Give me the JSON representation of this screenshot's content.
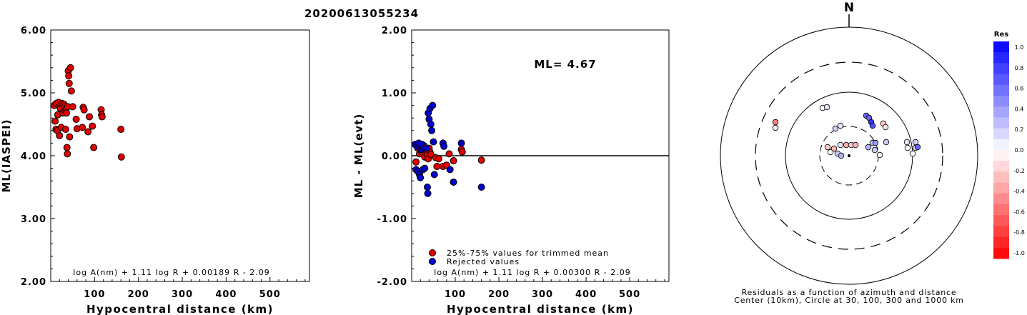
{
  "title": "20200613055234",
  "chart_data": [
    {
      "type": "scatter",
      "xlabel": "Hypocentral distance (km)",
      "ylabel": "ML(IASPEI)",
      "xlim": [
        0,
        590
      ],
      "ylim": [
        2.0,
        6.0
      ],
      "x_ticks": [
        "100",
        "200",
        "300",
        "400",
        "500"
      ],
      "y_ticks": [
        "2.00",
        "3.00",
        "4.00",
        "5.00",
        "6.00"
      ],
      "formula": "log A(nm) + 1.11 log R + 0.00189 R - 2.09",
      "series": [
        {
          "color": "#e00000",
          "points": [
            [
              8,
              4.8
            ],
            [
              10,
              4.55
            ],
            [
              12,
              4.42
            ],
            [
              12,
              4.83
            ],
            [
              15,
              4.4
            ],
            [
              16,
              4.65
            ],
            [
              18,
              4.85
            ],
            [
              20,
              4.32
            ],
            [
              22,
              4.75
            ],
            [
              24,
              4.45
            ],
            [
              26,
              4.83
            ],
            [
              28,
              4.68
            ],
            [
              30,
              4.82
            ],
            [
              32,
              4.78
            ],
            [
              33,
              4.72
            ],
            [
              34,
              4.42
            ],
            [
              35,
              4.75
            ],
            [
              36,
              4.68
            ],
            [
              37,
              4.13
            ],
            [
              38,
              4.03
            ],
            [
              39,
              4.78
            ],
            [
              40,
              5.35
            ],
            [
              41,
              5.27
            ],
            [
              42,
              5.15
            ],
            [
              43,
              4.3
            ],
            [
              45,
              5.4
            ],
            [
              47,
              5.03
            ],
            [
              50,
              4.78
            ],
            [
              58,
              4.58
            ],
            [
              60,
              4.43
            ],
            [
              72,
              4.45
            ],
            [
              74,
              4.77
            ],
            [
              76,
              4.73
            ],
            [
              85,
              4.38
            ],
            [
              88,
              4.62
            ],
            [
              95,
              4.47
            ],
            [
              98,
              4.13
            ],
            [
              115,
              4.73
            ],
            [
              116,
              4.65
            ],
            [
              117,
              4.62
            ],
            [
              160,
              4.42
            ],
            [
              161,
              3.98
            ]
          ]
        }
      ]
    },
    {
      "type": "scatter",
      "xlabel": "Hypocentral distance (km)",
      "ylabel": "ML - ML(evt)",
      "xlim": [
        0,
        590
      ],
      "ylim": [
        -2.0,
        2.0
      ],
      "x_ticks": [
        "100",
        "200",
        "300",
        "400",
        "500"
      ],
      "y_ticks": [
        "-2.00",
        "-1.00",
        "0.00",
        "1.00",
        "2.00"
      ],
      "annotation": "ML= 4.67",
      "formula": "log A(nm) + 1.11 log R + 0.00300 R - 2.09",
      "legend": [
        "25%-75% values for trimmed mean",
        "Rejected values"
      ],
      "series": [
        {
          "name": "25%-75% values for trimmed mean",
          "color": "#e00000",
          "points": [
            [
              10,
              -0.1
            ],
            [
              14,
              0.12
            ],
            [
              18,
              0.03
            ],
            [
              20,
              0.17
            ],
            [
              22,
              0.08
            ],
            [
              24,
              0.15
            ],
            [
              26,
              0.05
            ],
            [
              28,
              0.16
            ],
            [
              30,
              -0.02
            ],
            [
              32,
              0.1
            ],
            [
              34,
              0.08
            ],
            [
              36,
              0.02
            ],
            [
              38,
              -0.05
            ],
            [
              40,
              0.12
            ],
            [
              42,
              0.06
            ],
            [
              44,
              0.02
            ],
            [
              55,
              -0.03
            ],
            [
              58,
              -0.17
            ],
            [
              62,
              -0.05
            ],
            [
              72,
              -0.17
            ],
            [
              80,
              -0.15
            ],
            [
              86,
              0.03
            ],
            [
              96,
              -0.08
            ],
            [
              114,
              0.1
            ],
            [
              116,
              0.06
            ],
            [
              160,
              -0.07
            ]
          ]
        },
        {
          "name": "Rejected values",
          "color": "#0000cc",
          "points": [
            [
              8,
              0.18
            ],
            [
              10,
              -0.22
            ],
            [
              12,
              0.15
            ],
            [
              14,
              -0.25
            ],
            [
              16,
              0.2
            ],
            [
              18,
              -0.3
            ],
            [
              20,
              -0.35
            ],
            [
              22,
              0.1
            ],
            [
              24,
              0.18
            ],
            [
              26,
              -0.22
            ],
            [
              28,
              0.12
            ],
            [
              30,
              -0.2
            ],
            [
              34,
              0.12
            ],
            [
              36,
              -0.5
            ],
            [
              37,
              -0.6
            ],
            [
              38,
              0.68
            ],
            [
              40,
              0.58
            ],
            [
              42,
              0.75
            ],
            [
              44,
              0.5
            ],
            [
              46,
              0.4
            ],
            [
              48,
              0.8
            ],
            [
              50,
              0.22
            ],
            [
              52,
              -0.3
            ],
            [
              72,
              0.2
            ],
            [
              74,
              0.15
            ],
            [
              88,
              -0.22
            ],
            [
              96,
              -0.42
            ],
            [
              114,
              0.2
            ],
            [
              160,
              -0.5
            ]
          ]
        }
      ]
    },
    {
      "type": "polar-residuals",
      "north_label": "N",
      "legend_title": "Res",
      "colorbar_ticks": [
        "1.0",
        "0.8",
        "0.6",
        "0.4",
        "0.2",
        "0.0",
        "-0.2",
        "-0.4",
        "-0.6",
        "-0.8",
        "-1.0"
      ],
      "caption_line1": "Residuals as a function of azimuth and distance",
      "caption_line2": "Center (10km), Circle at 30, 100, 300 and 1000 km",
      "stations": [
        {
          "dx": -103,
          "dy": -47,
          "res": -0.5
        },
        {
          "dx": -103,
          "dy": -39,
          "res": -0.1
        },
        {
          "dx": -37,
          "dy": -67,
          "res": 0.0
        },
        {
          "dx": -31,
          "dy": -68,
          "res": 0.1
        },
        {
          "dx": -19,
          "dy": -38,
          "res": 0.2
        },
        {
          "dx": -12,
          "dy": -42,
          "res": 0.1
        },
        {
          "dx": -30,
          "dy": -12,
          "res": -0.2
        },
        {
          "dx": -26,
          "dy": -5,
          "res": 0.0
        },
        {
          "dx": -21,
          "dy": -10,
          "res": -0.3
        },
        {
          "dx": -16,
          "dy": -3,
          "res": 0.2
        },
        {
          "dx": -12,
          "dy": -15,
          "res": 0.1
        },
        {
          "dx": -4,
          "dy": -15,
          "res": -0.3
        },
        {
          "dx": 3,
          "dy": -15,
          "res": -0.2
        },
        {
          "dx": 9,
          "dy": -15,
          "res": -0.3
        },
        {
          "dx": -11,
          "dy": 0,
          "res": 0.3
        },
        {
          "dx": 24,
          "dy": -56,
          "res": 0.6
        },
        {
          "dx": 28,
          "dy": -53,
          "res": 0.6
        },
        {
          "dx": 31,
          "dy": -47,
          "res": 0.8
        },
        {
          "dx": 33,
          "dy": -42,
          "res": 0.7
        },
        {
          "dx": 27,
          "dy": -12,
          "res": 0.3
        },
        {
          "dx": 33,
          "dy": -18,
          "res": 0.2
        },
        {
          "dx": 37,
          "dy": -18,
          "res": 0.4
        },
        {
          "dx": 43,
          "dy": -1,
          "res": 0.0
        },
        {
          "dx": 36,
          "dy": -8,
          "res": 0.2
        },
        {
          "dx": 48,
          "dy": -45,
          "res": -0.2
        },
        {
          "dx": 51,
          "dy": -40,
          "res": -0.1
        },
        {
          "dx": 52,
          "dy": -19,
          "res": 0.2
        },
        {
          "dx": 81,
          "dy": -19,
          "res": 0.1
        },
        {
          "dx": 82,
          "dy": -11,
          "res": 0.0
        },
        {
          "dx": 89,
          "dy": -3,
          "res": 0.0
        },
        {
          "dx": 93,
          "dy": -11,
          "res": 0.1
        },
        {
          "dx": 93,
          "dy": -19,
          "res": 0.2
        },
        {
          "dx": 96,
          "dy": -12,
          "res": 0.6
        }
      ]
    }
  ]
}
